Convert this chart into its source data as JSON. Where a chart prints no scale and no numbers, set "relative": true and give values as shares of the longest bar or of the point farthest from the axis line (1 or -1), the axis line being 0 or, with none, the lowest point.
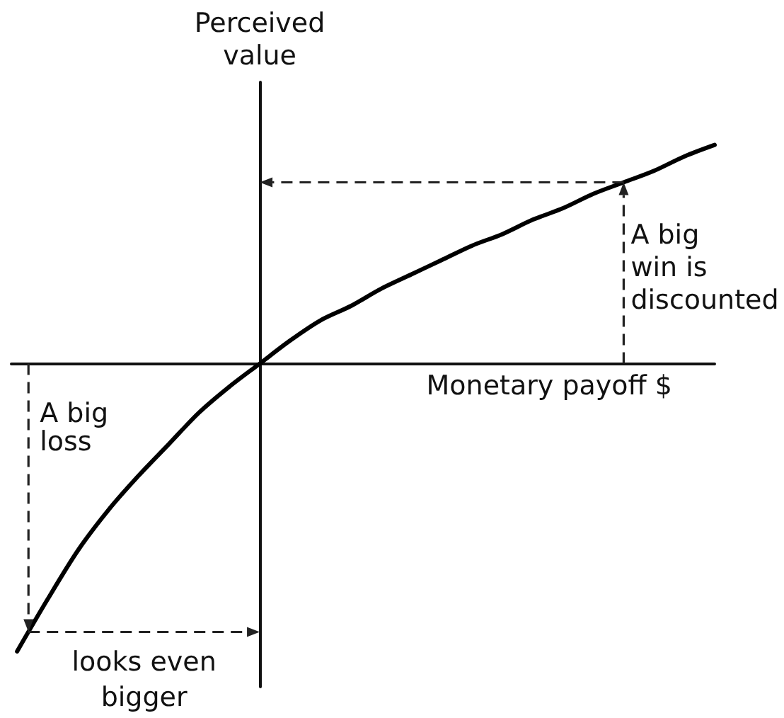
{
  "chart_data": {
    "type": "line",
    "relative": true,
    "xlabel": "Monetary payoff $",
    "ylabel": "Perceived\nvalue",
    "categories": [
      null,
      null,
      null,
      null,
      null,
      null,
      null,
      null,
      null,
      null,
      null,
      null,
      null,
      null,
      null,
      null,
      null,
      null,
      null,
      null,
      null,
      null,
      null,
      null
    ],
    "series": [
      {
        "color": "#000000",
        "values": [
          -1,
          -0.82,
          -0.65,
          -0.51,
          -0.39,
          -0.28,
          -0.17,
          -0.08,
          0,
          0.08,
          0.15,
          0.2,
          0.26,
          0.31,
          0.36,
          0.41,
          0.45,
          0.5,
          0.54,
          0.59,
          0.63,
          0.67,
          0.72,
          0.76
        ]
      }
    ],
    "marker": "none",
    "tick_labels": false,
    "annotations": [
      "A big\nwin is\ndiscounted",
      "A big\nloss",
      "looks even\nbigger"
    ]
  }
}
